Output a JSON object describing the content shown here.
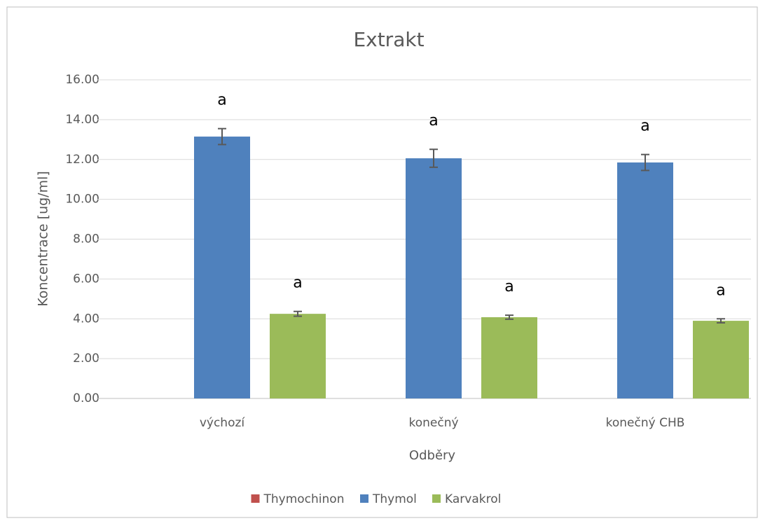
{
  "chart_data": {
    "type": "bar",
    "title": "Extrakt",
    "xlabel": "Odběry",
    "ylabel": "Koncentrace [ug/ml]",
    "categories": [
      "výchozí",
      "konečný",
      "konečný CHB"
    ],
    "series": [
      {
        "name": "Thymochinon",
        "color": "#c0504d",
        "values": [
          0,
          0,
          0
        ]
      },
      {
        "name": "Thymol",
        "color": "#4f81bd",
        "values": [
          13.15,
          12.06,
          11.85
        ],
        "errors": [
          0.4,
          0.45,
          0.4
        ],
        "annotations": [
          "a",
          "a",
          "a"
        ]
      },
      {
        "name": "Karvakrol",
        "color": "#9bbb59",
        "values": [
          4.25,
          4.08,
          3.9
        ],
        "errors": [
          0.12,
          0.1,
          0.1
        ],
        "annotations": [
          "a",
          "a",
          "a"
        ]
      }
    ],
    "ylim": [
      0,
      16
    ],
    "yticks": [
      {
        "value": 0,
        "label": "0.00"
      },
      {
        "value": 2,
        "label": "2.00"
      },
      {
        "value": 4,
        "label": "4.00"
      },
      {
        "value": 6,
        "label": "6.00"
      },
      {
        "value": 8,
        "label": "8.00"
      },
      {
        "value": 10,
        "label": "10.00"
      },
      {
        "value": 12,
        "label": "12.00"
      },
      {
        "value": 14,
        "label": "14.00"
      },
      {
        "value": 16,
        "label": "16.00"
      }
    ],
    "grid": true,
    "legend": "bottom"
  }
}
